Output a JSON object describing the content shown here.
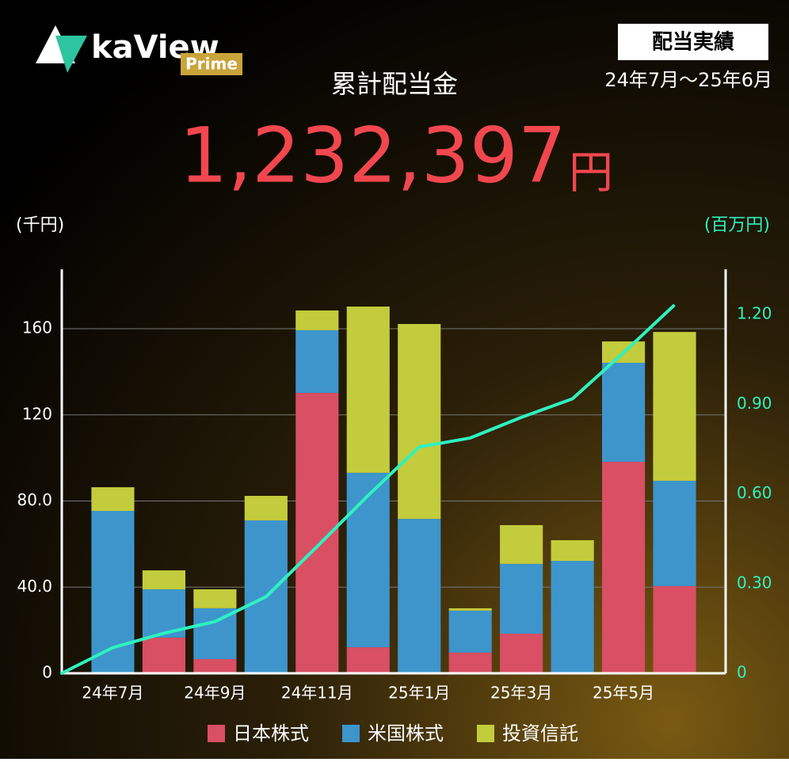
{
  "header": {
    "logo": "kaView",
    "logo_badge": "Prime",
    "badge": "配当実績",
    "period": "24年7月～25年6月",
    "total_label": "累計配当金",
    "total_value": "1,232,397",
    "total_unit": "円"
  },
  "chart_data": {
    "type": "bar+line",
    "y_label": "(千円)",
    "y2_label": "(百万円)",
    "categories": [
      "24年7月",
      null,
      "24年9月",
      null,
      "24年11月",
      null,
      "25年1月",
      null,
      "25年3月",
      null,
      "25年5月",
      null
    ],
    "series": [
      {
        "name": "日本株式",
        "color": "#d94f63",
        "values": [
          0,
          16.6,
          6.6,
          0,
          130.2,
          12.1,
          0,
          9.6,
          18.4,
          0,
          98.2,
          40.5
        ]
      },
      {
        "name": "米国株式",
        "color": "#3d95cc",
        "values": [
          75.4,
          22.4,
          23.6,
          71.0,
          29.1,
          81.0,
          71.7,
          19.5,
          32.4,
          52.2,
          46.0,
          48.9
        ]
      },
      {
        "name": "投資信託",
        "color": "#c3cc3c",
        "values": [
          11.0,
          8.8,
          8.8,
          11.4,
          9.2,
          77.2,
          90.5,
          1.1,
          18.0,
          9.6,
          9.9,
          69.1
        ]
      }
    ],
    "line": {
      "color": "#2ef2c0",
      "axis": "y2",
      "values": [
        0.086,
        0.134,
        0.173,
        0.256,
        0.424,
        0.595,
        0.757,
        0.787,
        0.856,
        0.918,
        1.072,
        1.232
      ]
    },
    "ylim": [
      0,
      187.6
    ],
    "yticks": [
      0,
      {
        "value": 40,
        "label": "40.0"
      },
      {
        "value": 80,
        "label": "80.0"
      },
      120,
      160
    ],
    "y2lim": [
      0,
      1.351
    ],
    "y2ticks": [
      0,
      {
        "value": 0.3,
        "label": "0.30"
      },
      {
        "value": 0.6,
        "label": "0.60"
      },
      {
        "value": 0.9,
        "label": "0.90"
      },
      {
        "value": 1.2,
        "label": "1.20"
      }
    ],
    "grid": true,
    "legend": "bottom"
  }
}
